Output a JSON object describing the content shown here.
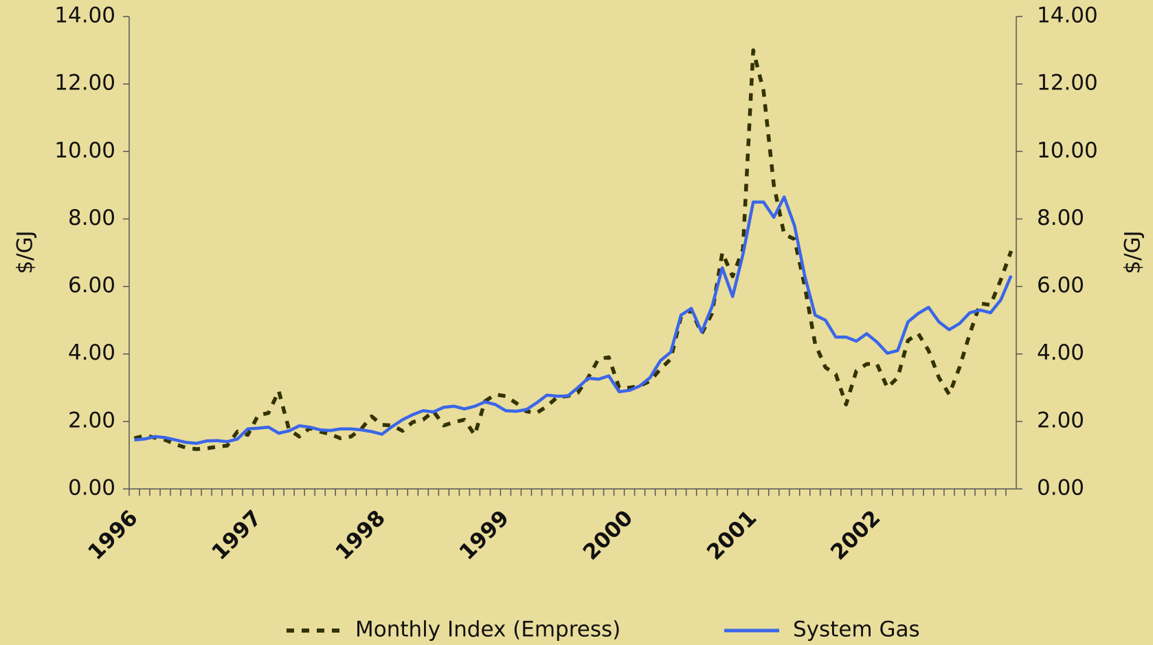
{
  "chart_data": {
    "type": "line",
    "y_label": "$/GJ",
    "y2_label": "$/GJ",
    "categories": [
      "1996",
      null,
      null,
      null,
      null,
      null,
      null,
      null,
      null,
      null,
      null,
      null,
      "1997",
      null,
      null,
      null,
      null,
      null,
      null,
      null,
      null,
      null,
      null,
      null,
      "1998",
      null,
      null,
      null,
      null,
      null,
      null,
      null,
      null,
      null,
      null,
      null,
      "1999",
      null,
      null,
      null,
      null,
      null,
      null,
      null,
      null,
      null,
      null,
      null,
      "2000",
      null,
      null,
      null,
      null,
      null,
      null,
      null,
      null,
      null,
      null,
      null,
      "2001",
      null,
      null,
      null,
      null,
      null,
      null,
      null,
      null,
      null,
      null,
      null,
      "2002",
      null,
      null,
      null,
      null,
      null,
      null,
      null,
      null,
      null,
      null,
      null,
      null,
      null
    ],
    "series": [
      {
        "name": "Monthly Index (Empress)",
        "color": "#333300",
        "dashed": true,
        "values": [
          1.5,
          1.58,
          1.52,
          1.45,
          1.32,
          1.22,
          1.18,
          1.2,
          1.25,
          1.28,
          1.7,
          1.6,
          2.18,
          2.25,
          2.9,
          1.75,
          1.55,
          1.8,
          1.7,
          1.62,
          1.5,
          1.55,
          1.78,
          2.15,
          1.9,
          1.88,
          1.72,
          1.98,
          2.05,
          2.3,
          1.88,
          1.98,
          2.05,
          1.6,
          2.6,
          2.8,
          2.75,
          2.55,
          2.3,
          2.25,
          2.45,
          2.72,
          2.75,
          2.85,
          3.3,
          3.85,
          3.9,
          3.0,
          3.0,
          3.05,
          3.2,
          3.55,
          3.85,
          5.1,
          5.3,
          4.6,
          5.2,
          7.0,
          6.3,
          7.1,
          13.0,
          11.8,
          9.0,
          7.55,
          7.4,
          6.0,
          4.3,
          3.6,
          3.4,
          2.5,
          3.5,
          3.7,
          3.7,
          3.0,
          3.3,
          4.4,
          4.6,
          4.1,
          3.3,
          2.8,
          3.6,
          4.6,
          5.5,
          5.45,
          6.2,
          7.05
        ]
      },
      {
        "name": "System Gas",
        "color": "#3a66e8",
        "dashed": false,
        "values": [
          1.45,
          1.48,
          1.55,
          1.52,
          1.45,
          1.38,
          1.35,
          1.42,
          1.43,
          1.4,
          1.48,
          1.78,
          1.8,
          1.83,
          1.65,
          1.72,
          1.87,
          1.83,
          1.75,
          1.73,
          1.78,
          1.78,
          1.75,
          1.7,
          1.62,
          1.85,
          2.05,
          2.2,
          2.32,
          2.28,
          2.42,
          2.45,
          2.37,
          2.45,
          2.58,
          2.5,
          2.32,
          2.3,
          2.35,
          2.55,
          2.78,
          2.75,
          2.75,
          3.0,
          3.28,
          3.25,
          3.35,
          2.88,
          2.92,
          3.05,
          3.3,
          3.8,
          4.05,
          5.15,
          5.35,
          4.65,
          5.4,
          6.55,
          5.7,
          6.95,
          8.5,
          8.5,
          8.05,
          8.65,
          7.8,
          6.3,
          5.15,
          5.0,
          4.5,
          4.5,
          4.38,
          4.6,
          4.35,
          4.02,
          4.1,
          4.95,
          5.2,
          5.38,
          4.95,
          4.72,
          4.9,
          5.22,
          5.3,
          5.22,
          5.6,
          6.32
        ]
      }
    ],
    "ylim": [
      0,
      14
    ],
    "yticks": [
      {
        "value": 0,
        "label": "0.00"
      },
      {
        "value": 2,
        "label": "2.00"
      },
      {
        "value": 4,
        "label": "4.00"
      },
      {
        "value": 6,
        "label": "6.00"
      },
      {
        "value": 8,
        "label": "8.00"
      },
      {
        "value": 10,
        "label": "10.00"
      },
      {
        "value": 12,
        "label": "12.00"
      },
      {
        "value": 14,
        "label": "14.00"
      }
    ],
    "y2lim": [
      0,
      14
    ],
    "y2ticks": [
      {
        "value": 0,
        "label": "0.00"
      },
      {
        "value": 2,
        "label": "2.00"
      },
      {
        "value": 4,
        "label": "4.00"
      },
      {
        "value": 6,
        "label": "6.00"
      },
      {
        "value": 8,
        "label": "8.00"
      },
      {
        "value": 10,
        "label": "10.00"
      },
      {
        "value": 12,
        "label": "12.00"
      },
      {
        "value": 14,
        "label": "14.00"
      }
    ],
    "legend": "bottom",
    "grid": false
  }
}
